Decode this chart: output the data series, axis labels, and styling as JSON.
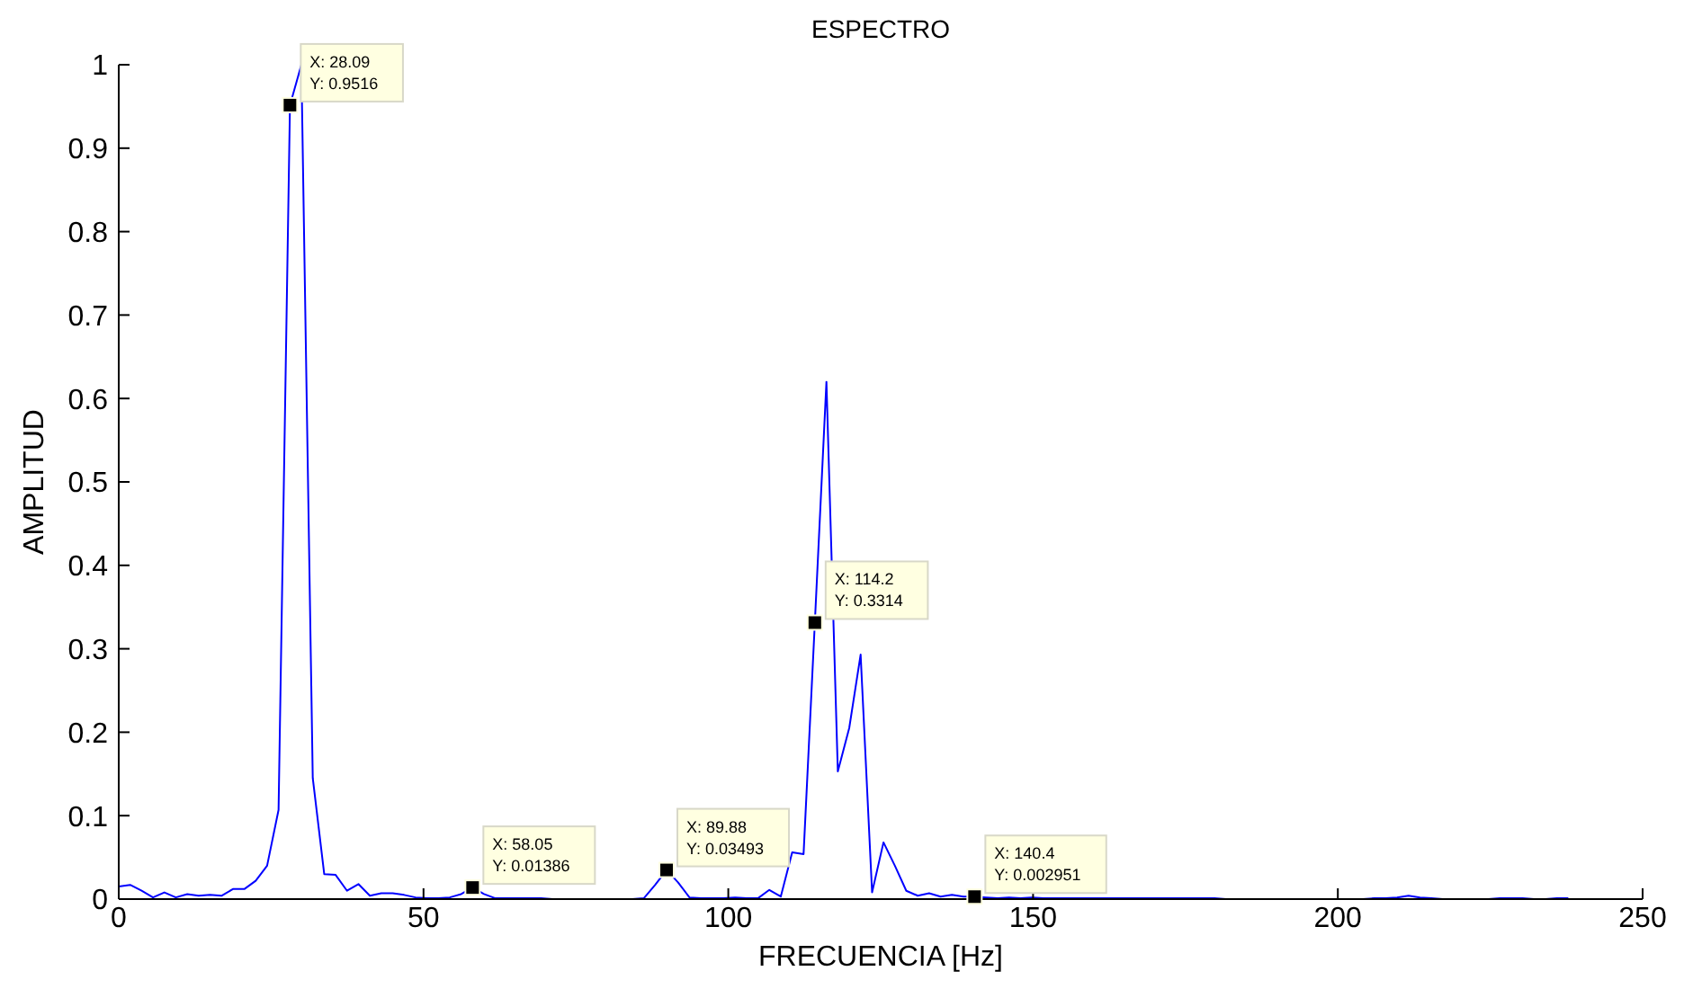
{
  "chart_data": {
    "type": "line",
    "title": "ESPECTRO",
    "xlabel": "FRECUENCIA [Hz]",
    "ylabel": "AMPLITUD",
    "series": [
      {
        "color": "#0000ff",
        "x": [
          0,
          1.87,
          3.75,
          5.62,
          7.49,
          9.36,
          11.24,
          13.11,
          14.98,
          16.85,
          18.73,
          20.6,
          22.47,
          24.34,
          26.22,
          28.09,
          29.96,
          31.83,
          33.71,
          35.58,
          37.45,
          39.32,
          41.2,
          43.07,
          44.94,
          46.81,
          48.69,
          50.56,
          52.43,
          54.3,
          56.18,
          58.05,
          59.92,
          61.79,
          63.67,
          65.54,
          67.41,
          69.28,
          71.16,
          73.03,
          74.9,
          76.77,
          78.65,
          80.52,
          82.39,
          84.26,
          86.14,
          88.01,
          89.88,
          91.75,
          93.63,
          95.5,
          97.37,
          99.24,
          101.12,
          102.99,
          104.86,
          106.73,
          108.61,
          110.48,
          112.35,
          114.2,
          116.1,
          117.97,
          119.84,
          121.71,
          123.59,
          125.46,
          127.33,
          129.2,
          131.08,
          132.95,
          134.82,
          136.69,
          138.57,
          140.4,
          142.31,
          144.19,
          146.06,
          147.93,
          149.8,
          151.68,
          153.55,
          155.42,
          157.29,
          159.17,
          161.04,
          162.91,
          164.78,
          166.66,
          168.53,
          170.4,
          172.27,
          174.15,
          176.02,
          177.89,
          179.76,
          181.64,
          183.51,
          185.38,
          187.25,
          189.13,
          191,
          192.87,
          194.74,
          196.62,
          198.49,
          200.36,
          202.23,
          204.11,
          205.98,
          207.85,
          209.72,
          211.6,
          213.47,
          215.34,
          217.21,
          219.09,
          220.96,
          222.83,
          224.7,
          226.58,
          228.45,
          230.32,
          232.19,
          234.07,
          235.94,
          237.81
        ],
        "values": [
          0.015,
          0.017,
          0.01,
          0.002,
          0.008,
          0.002,
          0.006,
          0.004,
          0.005,
          0.004,
          0.012,
          0.012,
          0.022,
          0.04,
          0.107,
          0.9516,
          1,
          0.145,
          0.03,
          0.029,
          0.01,
          0.018,
          0.004,
          0.007,
          0.007,
          0.005,
          0.002,
          0.001,
          0.001,
          0.002,
          0.006,
          0.01386,
          0.006,
          0.001,
          0.001,
          0.001,
          0.001,
          0.001,
          0,
          0,
          0,
          0,
          0,
          0,
          0,
          0,
          0.001,
          0.017,
          0.03493,
          0.02,
          0.002,
          0.001,
          0.001,
          0.001,
          0.002,
          0.001,
          0.001,
          0.011,
          0.003,
          0.056,
          0.054,
          0.3314,
          0.62,
          0.153,
          0.205,
          0.293,
          0.008,
          0.068,
          0.04,
          0.01,
          0.004,
          0.007,
          0.003,
          0.005,
          0.003,
          0.002951,
          0.002,
          0.001,
          0.002,
          0.001,
          0.002,
          0.001,
          0.001,
          0.001,
          0.001,
          0.001,
          0.001,
          0.001,
          0.001,
          0.001,
          0.001,
          0.001,
          0.001,
          0.001,
          0.001,
          0.001,
          0.001,
          0,
          0,
          0,
          0,
          0,
          0,
          0,
          0,
          0,
          0,
          0,
          0,
          0,
          0.001,
          0.001,
          0.002,
          0.004,
          0.002,
          0.001,
          0,
          0,
          0,
          0,
          0,
          0.001,
          0.001,
          0.001,
          0,
          0,
          0.001,
          0.001
        ]
      }
    ],
    "xlim": [
      0,
      250
    ],
    "xticks": [
      0,
      50,
      100,
      150,
      200,
      250
    ],
    "ylim": [
      0,
      1
    ],
    "yticks": [
      0,
      0.1,
      0.2,
      0.3,
      0.4,
      0.5,
      0.6,
      0.7,
      0.8,
      0.9,
      1
    ],
    "grid": false,
    "marker": "none",
    "line_style": "solid",
    "annotations": [
      {
        "text": "X: 28.09\nY: 0.9516",
        "x": 28.09,
        "y": 0.9516
      },
      {
        "text": "X: 58.05\nY: 0.01386",
        "x": 58.05,
        "y": 0.01386
      },
      {
        "text": "X: 89.88\nY: 0.03493",
        "x": 89.88,
        "y": 0.03493
      },
      {
        "text": "X: 114.2\nY: 0.3314",
        "x": 114.2,
        "y": 0.3314
      },
      {
        "text": "X: 140.4\nY: 0.002951",
        "x": 140.4,
        "y": 0.002951
      }
    ]
  }
}
